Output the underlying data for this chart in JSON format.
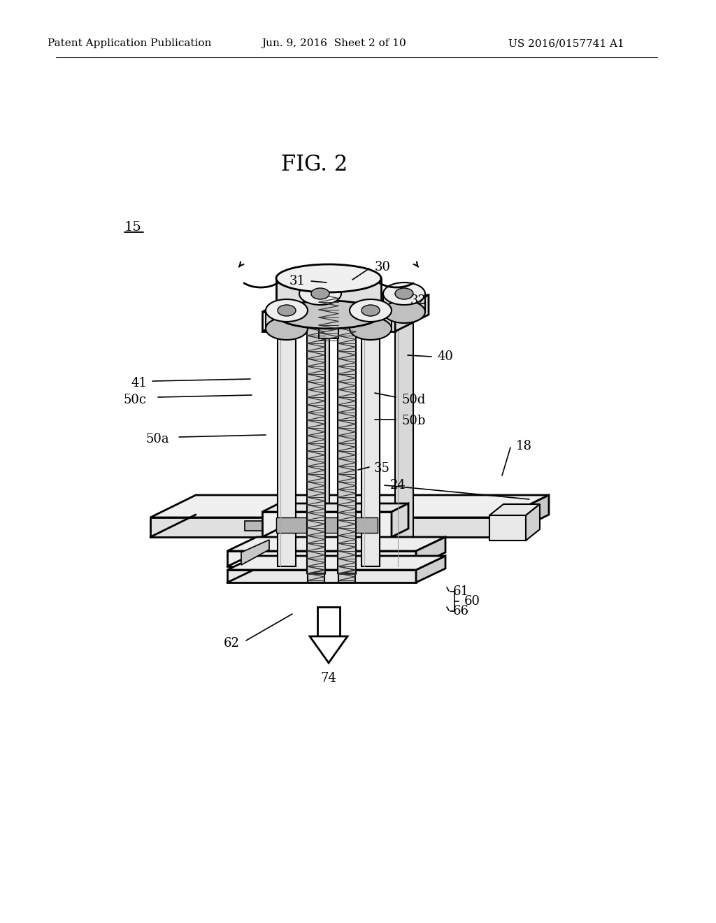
{
  "header_left": "Patent Application Publication",
  "header_mid": "Jun. 9, 2016  Sheet 2 of 10",
  "header_right": "US 2016/0157741 A1",
  "fig_title": "FIG. 2",
  "bg_color": "#ffffff",
  "lc": "#000000"
}
